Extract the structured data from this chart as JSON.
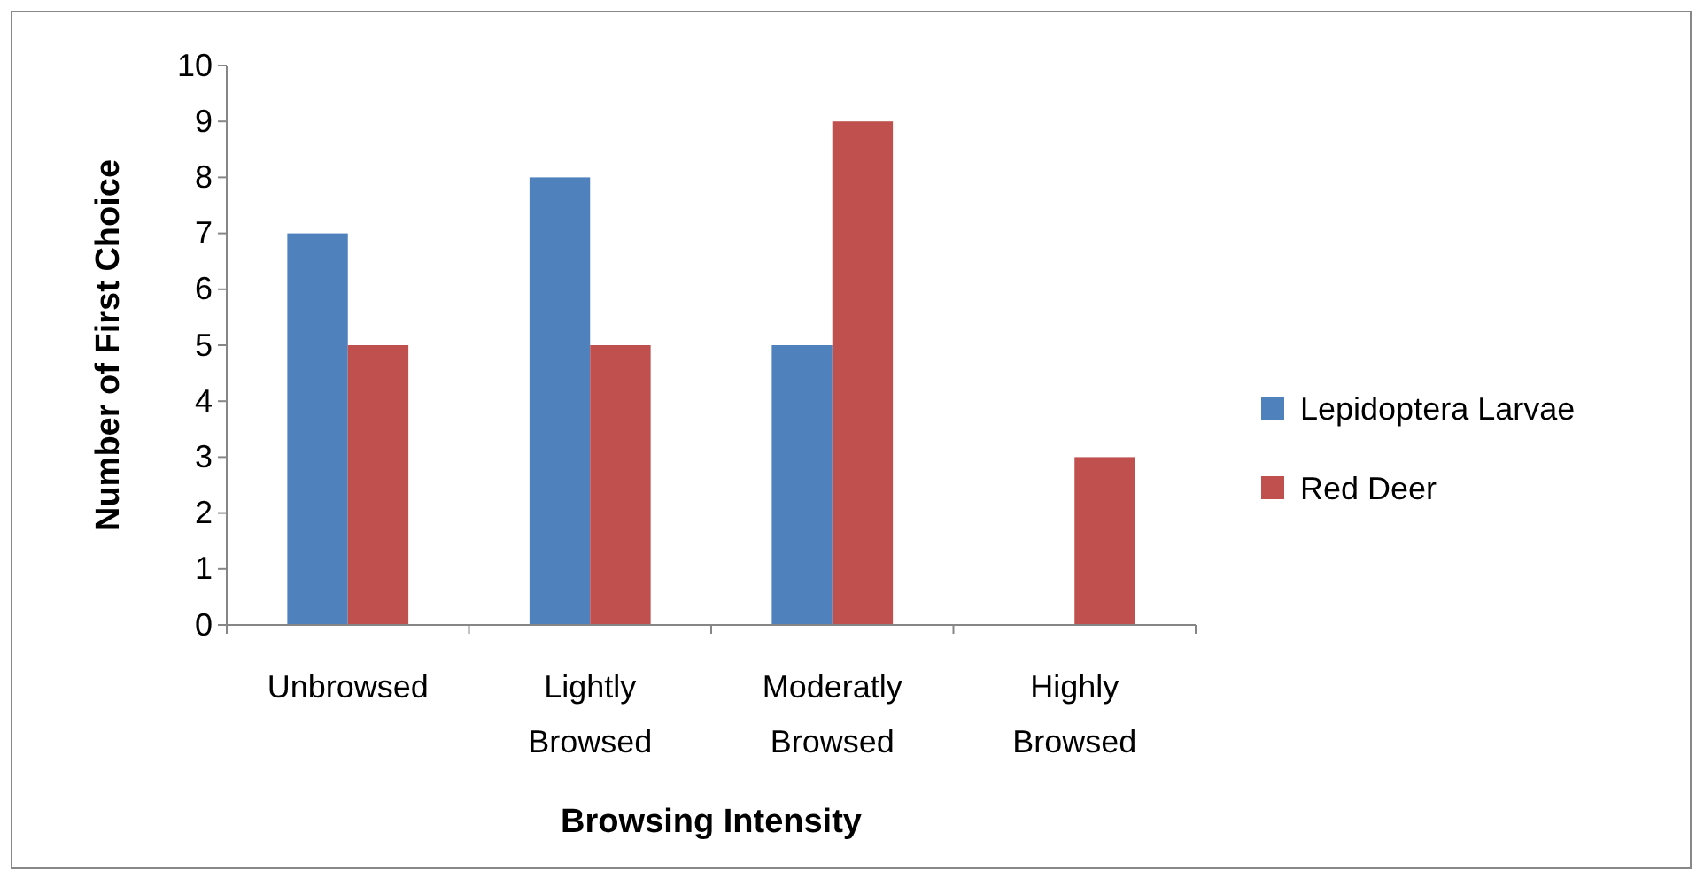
{
  "chart_data": {
    "type": "bar",
    "xlabel": "Browsing Intensity",
    "ylabel": "Number of First Choice",
    "categories": [
      "Unbrowsed",
      "Lightly Browsed",
      "Moderatly Browsed",
      "Highly Browsed"
    ],
    "series": [
      {
        "name": "Lepidoptera Larvae",
        "color": "#4f81bd",
        "values": [
          7,
          8,
          5,
          0
        ]
      },
      {
        "name": "Red Deer",
        "color": "#c0504d",
        "values": [
          5,
          5,
          9,
          3
        ]
      }
    ],
    "ylim": [
      0,
      10
    ],
    "yticks": [
      0,
      1,
      2,
      3,
      4,
      5,
      6,
      7,
      8,
      9,
      10
    ],
    "grid": false,
    "legend": "right"
  }
}
